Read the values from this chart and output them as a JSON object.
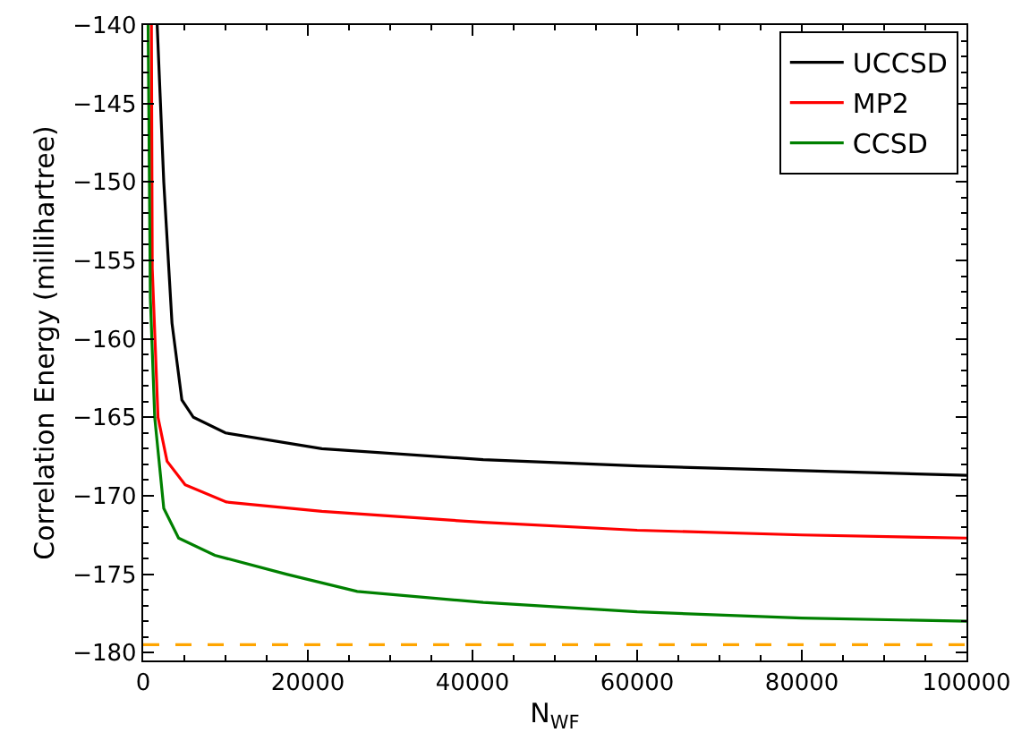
{
  "chart_data": {
    "type": "line",
    "xlabel": "N$_{WF}$",
    "ylabel": "Correlation Energy (millihartree)",
    "xlim": [
      0,
      100000
    ],
    "xticks": [
      0,
      20000,
      40000,
      60000,
      80000,
      100000
    ],
    "ylim": [
      -180.5,
      -140
    ],
    "yticks": [
      -180,
      -175,
      -170,
      -165,
      -160,
      -155,
      -150,
      -145,
      -140
    ],
    "legend": "top right",
    "grid": false,
    "marker": "none",
    "line_style": "solid",
    "series": [
      {
        "name": "UCCSD",
        "color": "#000000",
        "x": [
          1700,
          2500,
          3500,
          4700,
          6100,
          10000,
          21700,
          41300,
          60100,
          80000,
          100000
        ],
        "values": [
          -140,
          -150,
          -159,
          -163.9,
          -165.0,
          -166.0,
          -167.0,
          -167.7,
          -168.1,
          -168.4,
          -168.7
        ]
      },
      {
        "name": "MP2",
        "color": "#ff0000",
        "x": [
          1000,
          1100,
          1800,
          2900,
          5100,
          10100,
          21700,
          41300,
          60000,
          80000,
          100000
        ],
        "values": [
          -140,
          -155.5,
          -165.0,
          -167.8,
          -169.3,
          -170.4,
          -171.0,
          -171.7,
          -172.2,
          -172.5,
          -172.7
        ]
      },
      {
        "name": "CCSD",
        "color": "#008000",
        "x": [
          600,
          870,
          1400,
          2500,
          4300,
          8700,
          17400,
          26000,
          41300,
          60000,
          80000,
          100000
        ],
        "values": [
          -140,
          -157.4,
          -165.0,
          -170.8,
          -172.7,
          -173.8,
          -175.0,
          -176.1,
          -176.8,
          -177.4,
          -177.8,
          -178.0
        ]
      }
    ],
    "ref_lines": [
      {
        "axis": "y",
        "value": -179.5,
        "color": "#ffa500",
        "line_style": "dashed"
      }
    ]
  }
}
